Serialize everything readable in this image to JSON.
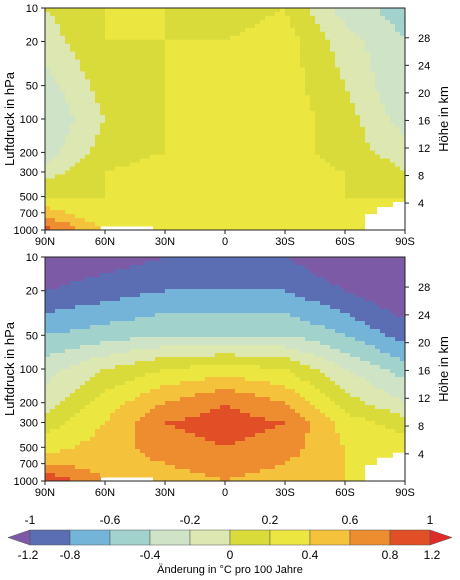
{
  "chart_data": [
    {
      "type": "heatmap",
      "panel": "top",
      "xlabel": "",
      "ylabel": "Luftdruck in hPa",
      "y2label": "Höhe in km",
      "x_ticks": [
        "90N",
        "60N",
        "30N",
        "0",
        "30S",
        "60S",
        "90S"
      ],
      "x_tick_values": [
        90,
        60,
        30,
        0,
        -30,
        -60,
        -90
      ],
      "xlim": [
        90,
        -90
      ],
      "y_ticks": [
        "10",
        "20",
        "50",
        "100",
        "200",
        "300",
        "500",
        "700",
        "1000"
      ],
      "y_tick_values": [
        10,
        20,
        50,
        100,
        200,
        300,
        500,
        700,
        1000
      ],
      "ylim": [
        1000,
        10
      ],
      "y_scale": "log",
      "y2_ticks": [
        "28",
        "24",
        "20",
        "16",
        "12",
        "8",
        "4"
      ],
      "y2_tick_values": [
        28,
        24,
        20,
        16,
        12,
        8,
        4
      ],
      "lat": [
        90,
        60,
        30,
        0,
        -30,
        -60,
        -90
      ],
      "pressure": [
        10,
        20,
        50,
        100,
        200,
        300,
        500,
        700,
        1000
      ],
      "values": [
        [
          0.0,
          0.2,
          0.2,
          0.1,
          0.2,
          -0.3,
          -0.5
        ],
        [
          -0.1,
          0.2,
          0.2,
          0.2,
          0.3,
          -0.1,
          -0.4
        ],
        [
          -0.3,
          0.1,
          0.2,
          0.2,
          0.3,
          0.0,
          -0.4
        ],
        [
          -0.4,
          0.0,
          0.2,
          0.2,
          0.3,
          0.1,
          -0.3
        ],
        [
          -0.3,
          0.1,
          0.2,
          0.3,
          0.3,
          0.1,
          -0.1
        ],
        [
          -0.1,
          0.2,
          0.3,
          0.3,
          0.3,
          0.2,
          0.0
        ],
        [
          0.2,
          0.2,
          0.3,
          0.3,
          0.3,
          0.2,
          0.2
        ],
        [
          0.5,
          0.2,
          0.3,
          0.3,
          0.3,
          0.2,
          0.2
        ],
        [
          0.9,
          0.4,
          0.3,
          0.3,
          0.3,
          0.2,
          0.2
        ]
      ]
    },
    {
      "type": "heatmap",
      "panel": "bottom",
      "xlabel": "",
      "ylabel": "Luftdruck in hPa",
      "y2label": "Höhe in km",
      "x_ticks": [
        "90N",
        "60N",
        "30N",
        "0",
        "30S",
        "60S",
        "90S"
      ],
      "x_tick_values": [
        90,
        60,
        30,
        0,
        -30,
        -60,
        -90
      ],
      "xlim": [
        90,
        -90
      ],
      "y_ticks": [
        "10",
        "20",
        "50",
        "100",
        "200",
        "300",
        "500",
        "700",
        "1000"
      ],
      "y_tick_values": [
        10,
        20,
        50,
        100,
        200,
        300,
        500,
        700,
        1000
      ],
      "ylim": [
        1000,
        10
      ],
      "y_scale": "log",
      "y2_ticks": [
        "28",
        "24",
        "20",
        "16",
        "12",
        "8",
        "4"
      ],
      "y2_tick_values": [
        28,
        24,
        20,
        16,
        12,
        8,
        4
      ],
      "lat": [
        90,
        60,
        30,
        0,
        -30,
        -60,
        -90
      ],
      "pressure": [
        10,
        20,
        50,
        100,
        200,
        300,
        500,
        700,
        1000
      ],
      "values": [
        [
          -1.2,
          -1.1,
          -1.0,
          -1.0,
          -1.0,
          -1.2,
          -1.2
        ],
        [
          -1.0,
          -0.9,
          -0.8,
          -0.8,
          -0.8,
          -1.0,
          -1.2
        ],
        [
          -0.6,
          -0.5,
          -0.4,
          -0.4,
          -0.4,
          -0.6,
          -0.9
        ],
        [
          -0.3,
          0.0,
          0.2,
          0.3,
          0.2,
          -0.2,
          -0.5
        ],
        [
          -0.1,
          0.3,
          0.6,
          0.8,
          0.6,
          0.1,
          -0.2
        ],
        [
          0.1,
          0.4,
          0.8,
          0.9,
          0.8,
          0.3,
          0.1
        ],
        [
          0.3,
          0.5,
          0.7,
          0.8,
          0.7,
          0.4,
          0.3
        ],
        [
          0.6,
          0.5,
          0.6,
          0.7,
          0.6,
          0.4,
          0.3
        ],
        [
          1.0,
          0.6,
          0.5,
          0.6,
          0.5,
          0.4,
          0.3
        ]
      ]
    }
  ],
  "colorbar": {
    "label": "Änderung in °C pro 100 Jahre",
    "top_ticks": [
      "-1",
      "-0.6",
      "-0.2",
      "0.2",
      "0.6",
      "1"
    ],
    "top_tick_values": [
      -1,
      -0.6,
      -0.2,
      0.2,
      0.6,
      1
    ],
    "bottom_ticks": [
      "-1.2",
      "-0.8",
      "-0.4",
      "0",
      "0.4",
      "0.8",
      "1.2"
    ],
    "bottom_tick_values": [
      -1.2,
      -0.8,
      -0.4,
      0,
      0.4,
      0.8,
      1.2
    ],
    "bins": [
      -1.2,
      -1.0,
      -0.8,
      -0.6,
      -0.4,
      -0.2,
      0.0,
      0.2,
      0.4,
      0.6,
      0.8,
      1.0,
      1.2
    ],
    "colors": [
      "#7d5aa6",
      "#5b6db3",
      "#73b4d8",
      "#a1d2cb",
      "#cfe4c6",
      "#dce7b1",
      "#d8db3a",
      "#ece641",
      "#f5c23c",
      "#ee8d2f",
      "#e04f25",
      "#dd2c2a"
    ]
  }
}
